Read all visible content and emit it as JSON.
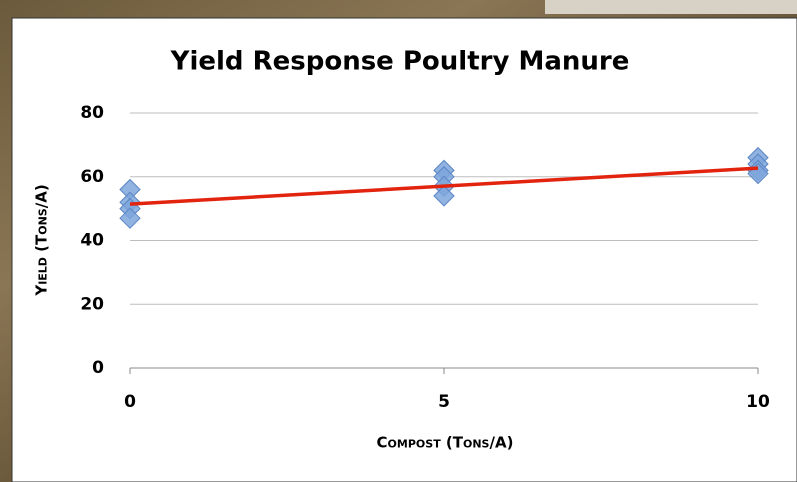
{
  "chart_data": {
    "type": "scatter",
    "title": "Yield Response Poultry Manure",
    "x_label": "Compost (Tons/A)",
    "y_label": "Yield (Tons/A)",
    "xlim": [
      0,
      10
    ],
    "xticks": [
      0,
      5,
      10
    ],
    "ylim": [
      0,
      80
    ],
    "yticks": [
      0,
      20,
      40,
      60,
      80
    ],
    "grid": true,
    "series": [
      {
        "color": "#7ea6dc",
        "marker": "diamond",
        "x": [
          0,
          0,
          0,
          0,
          5,
          5,
          5,
          5,
          10,
          10,
          10,
          10
        ],
        "values": [
          56,
          52,
          50,
          47,
          62,
          60,
          57,
          54,
          66,
          64,
          62,
          61
        ]
      },
      {
        "color": "#e2240f",
        "marker": "line",
        "x": [
          0,
          10
        ],
        "values": [
          51.4,
          62.7
        ]
      }
    ]
  }
}
